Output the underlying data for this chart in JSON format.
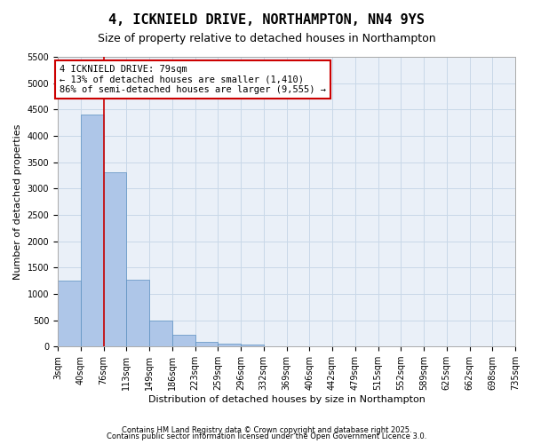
{
  "title1": "4, ICKNIELD DRIVE, NORTHAMPTON, NN4 9YS",
  "title2": "Size of property relative to detached houses in Northampton",
  "xlabel": "Distribution of detached houses by size in Northampton",
  "ylabel": "Number of detached properties",
  "bar_values": [
    1250,
    4400,
    3300,
    1270,
    500,
    230,
    80,
    60,
    40,
    10,
    5,
    2,
    1,
    0,
    0,
    0,
    0,
    0,
    0,
    0
  ],
  "categories": [
    "3sqm",
    "40sqm",
    "76sqm",
    "113sqm",
    "149sqm",
    "186sqm",
    "223sqm",
    "259sqm",
    "296sqm",
    "332sqm",
    "369sqm",
    "406sqm",
    "442sqm",
    "479sqm",
    "515sqm",
    "552sqm",
    "589sqm",
    "625sqm",
    "662sqm",
    "698sqm",
    "735sqm"
  ],
  "bar_color": "#aec6e8",
  "bar_edge_color": "#5a8fc0",
  "grid_color": "#c8d8e8",
  "background_color": "#eaf0f8",
  "vline_x": 2,
  "vline_color": "#cc0000",
  "annotation_text": "4 ICKNIELD DRIVE: 79sqm\n← 13% of detached houses are smaller (1,410)\n86% of semi-detached houses are larger (9,555) →",
  "annotation_box_color": "#cc0000",
  "ylim": [
    0,
    5500
  ],
  "yticks": [
    0,
    500,
    1000,
    1500,
    2000,
    2500,
    3000,
    3500,
    4000,
    4500,
    5000,
    5500
  ],
  "footnote1": "Contains HM Land Registry data © Crown copyright and database right 2025.",
  "footnote2": "Contains public sector information licensed under the Open Government Licence 3.0.",
  "title1_fontsize": 11,
  "title2_fontsize": 9,
  "annotation_fontsize": 7.5,
  "tick_fontsize": 7,
  "label_fontsize": 8
}
